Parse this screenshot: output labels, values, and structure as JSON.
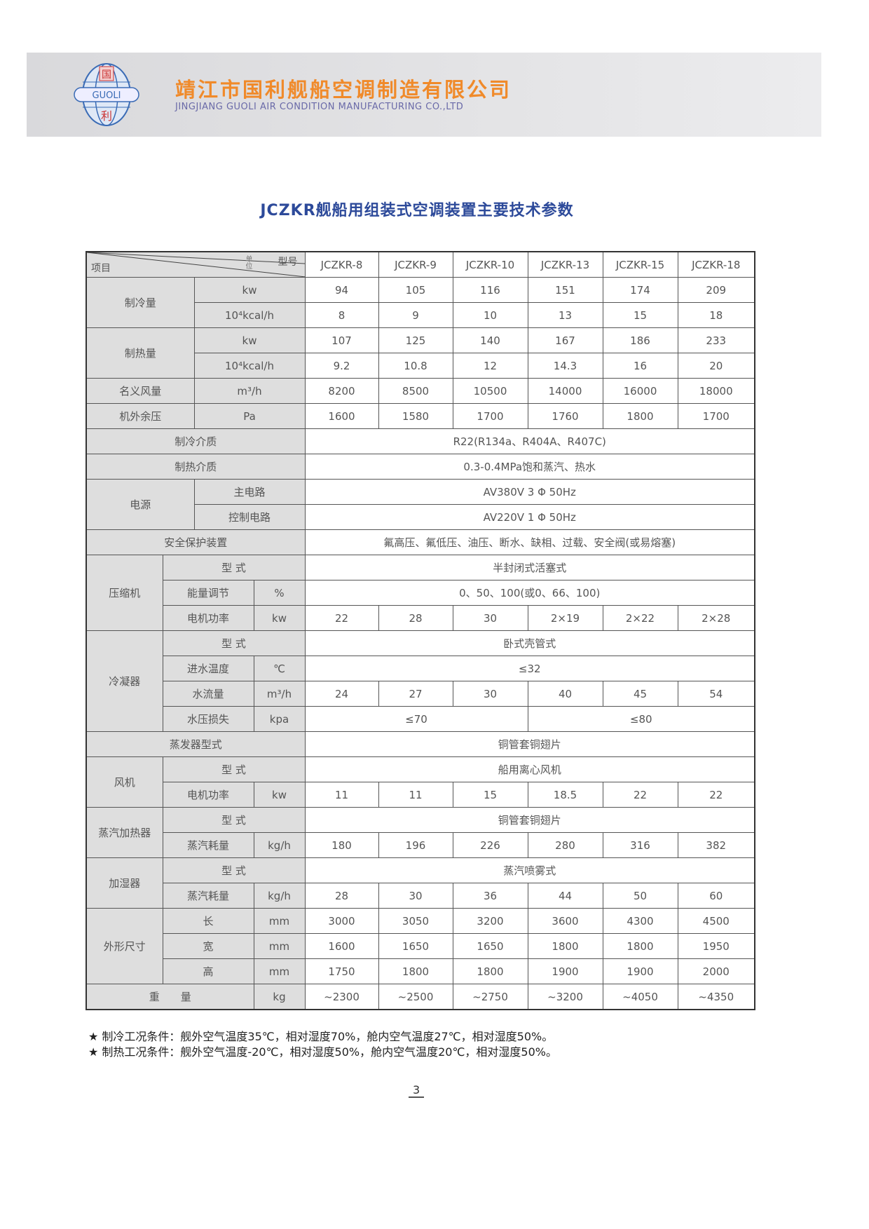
{
  "header": {
    "company_cn": "靖江市国利舰船空调制造有限公司",
    "company_en": "JINGJIANG GUOLI AIR CONDITION MANUFACTURING CO.,LTD",
    "logo_text": "国 GUOLI 利",
    "brand_color": "#f08a2a"
  },
  "title": "JCZKR舰船用组装式空调装置主要技术参数",
  "table": {
    "corner": {
      "item": "项目",
      "model": "型号",
      "unit": "单位"
    },
    "models": [
      "JCZKR-8",
      "JCZKR-9",
      "JCZKR-10",
      "JCZKR-13",
      "JCZKR-15",
      "JCZKR-18"
    ],
    "cooling": {
      "label": "制冷量",
      "unit_kw": "kw",
      "unit_kcal": "10⁴kcal/h",
      "kw": [
        "94",
        "105",
        "116",
        "151",
        "174",
        "209"
      ],
      "kcal": [
        "8",
        "9",
        "10",
        "13",
        "15",
        "18"
      ]
    },
    "heating": {
      "label": "制热量",
      "unit_kw": "kw",
      "unit_kcal": "10⁴kcal/h",
      "kw": [
        "107",
        "125",
        "140",
        "167",
        "186",
        "233"
      ],
      "kcal": [
        "9.2",
        "10.8",
        "12",
        "14.3",
        "16",
        "20"
      ]
    },
    "airflow": {
      "label": "名义风量",
      "unit": "m³/h",
      "values": [
        "8200",
        "8500",
        "10500",
        "14000",
        "16000",
        "18000"
      ]
    },
    "pressure": {
      "label": "机外余压",
      "unit": "Pa",
      "values": [
        "1600",
        "1580",
        "1700",
        "1760",
        "1800",
        "1700"
      ]
    },
    "refrigerant": {
      "label": "制冷介质",
      "value": "R22(R134a、R404A、R407C)"
    },
    "heating_medium": {
      "label": "制热介质",
      "value": "0.3-0.4MPa饱和蒸汽、热水"
    },
    "power": {
      "label": "电源",
      "main_label": "主电路",
      "main": "AV380V 3 Φ 50Hz",
      "ctrl_label": "控制电路",
      "ctrl": "AV220V 1 Φ 50Hz"
    },
    "safety": {
      "label": "安全保护装置",
      "value": "氟高压、氟低压、油压、断水、缺相、过载、安全阀(或易熔塞)"
    },
    "compressor": {
      "label": "压缩机",
      "type_label": "型 式",
      "type": "半封闭式活塞式",
      "cap_label": "能量调节",
      "cap_unit": "%",
      "cap": "0、50、100(或0、66、100)",
      "motor_label": "电机功率",
      "motor_unit": "kw",
      "motor": [
        "22",
        "28",
        "30",
        "2×19",
        "2×22",
        "2×28"
      ]
    },
    "condenser": {
      "label": "冷凝器",
      "type_label": "型 式",
      "type": "卧式壳管式",
      "temp_label": "进水温度",
      "temp_unit": "℃",
      "temp": "≤32",
      "flow_label": "水流量",
      "flow_unit": "m³/h",
      "flow": [
        "24",
        "27",
        "30",
        "40",
        "45",
        "54"
      ],
      "loss_label": "水压损失",
      "loss_unit": "kpa",
      "loss_a": "≤70",
      "loss_b": "≤80"
    },
    "evaporator": {
      "label": "蒸发器型式",
      "value": "铜管套铜翅片"
    },
    "fan": {
      "label": "风机",
      "type_label": "型 式",
      "type": "船用离心风机",
      "motor_label": "电机功率",
      "motor_unit": "kw",
      "motor": [
        "11",
        "11",
        "15",
        "18.5",
        "22",
        "22"
      ]
    },
    "heater": {
      "label": "蒸汽加热器",
      "type_label": "型 式",
      "type": "铜管套铜翅片",
      "steam_label": "蒸汽耗量",
      "steam_unit": "kg/h",
      "steam": [
        "180",
        "196",
        "226",
        "280",
        "316",
        "382"
      ]
    },
    "humidifier": {
      "label": "加湿器",
      "type_label": "型 式",
      "type": "蒸汽喷雾式",
      "steam_label": "蒸汽耗量",
      "steam_unit": "kg/h",
      "steam": [
        "28",
        "30",
        "36",
        "44",
        "50",
        "60"
      ]
    },
    "dimensions": {
      "label": "外形尺寸",
      "unit": "mm",
      "length_label": "长",
      "length": [
        "3000",
        "3050",
        "3200",
        "3600",
        "4300",
        "4500"
      ],
      "width_label": "宽",
      "width": [
        "1600",
        "1650",
        "1650",
        "1800",
        "1800",
        "1950"
      ],
      "height_label": "高",
      "height": [
        "1750",
        "1800",
        "1800",
        "1900",
        "1900",
        "2000"
      ]
    },
    "weight": {
      "label": "重　　量",
      "unit": "kg",
      "values": [
        "~2300",
        "~2500",
        "~2750",
        "~3200",
        "~4050",
        "~4350"
      ]
    }
  },
  "notes": [
    "★ 制冷工况条件：舰外空气温度35℃，相对湿度70%，舱内空气温度27℃，相对湿度50%。",
    "★ 制热工况条件：舰外空气温度-20℃，相对湿度50%，舱内空气温度20℃，相对湿度50%。"
  ],
  "page_number": "3"
}
